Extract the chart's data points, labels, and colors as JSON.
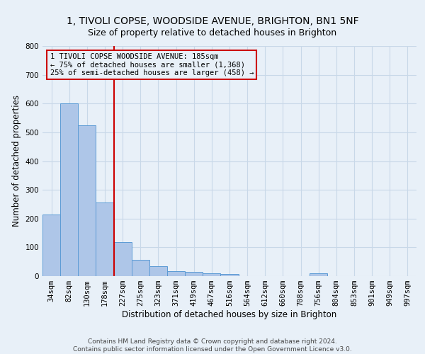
{
  "title_line1": "1, TIVOLI COPSE, WOODSIDE AVENUE, BRIGHTON, BN1 5NF",
  "title_line2": "Size of property relative to detached houses in Brighton",
  "xlabel": "Distribution of detached houses by size in Brighton",
  "ylabel": "Number of detached properties",
  "footnote": "Contains HM Land Registry data © Crown copyright and database right 2024.\nContains public sector information licensed under the Open Government Licence v3.0.",
  "bar_labels": [
    "34sqm",
    "82sqm",
    "130sqm",
    "178sqm",
    "227sqm",
    "275sqm",
    "323sqm",
    "371sqm",
    "419sqm",
    "467sqm",
    "516sqm",
    "564sqm",
    "612sqm",
    "660sqm",
    "708sqm",
    "756sqm",
    "804sqm",
    "853sqm",
    "901sqm",
    "949sqm",
    "997sqm"
  ],
  "bar_values": [
    215,
    600,
    525,
    255,
    117,
    57,
    35,
    17,
    15,
    10,
    7,
    0,
    0,
    0,
    0,
    10,
    0,
    0,
    0,
    0,
    0
  ],
  "bar_color": "#aec6e8",
  "bar_edge_color": "#5b9bd5",
  "property_line_index": 3,
  "annotation_text": "1 TIVOLI COPSE WOODSIDE AVENUE: 185sqm\n← 75% of detached houses are smaller (1,368)\n25% of semi-detached houses are larger (458) →",
  "vline_color": "#cc0000",
  "annotation_box_color": "#cc0000",
  "ylim": [
    0,
    800
  ],
  "yticks": [
    0,
    100,
    200,
    300,
    400,
    500,
    600,
    700,
    800
  ],
  "grid_color": "#c8d8e8",
  "background_color": "#e8f0f8",
  "title_fontsize": 10,
  "subtitle_fontsize": 9,
  "axis_label_fontsize": 8.5,
  "tick_fontsize": 7.5,
  "annotation_fontsize": 7.5,
  "footnote_fontsize": 6.5
}
